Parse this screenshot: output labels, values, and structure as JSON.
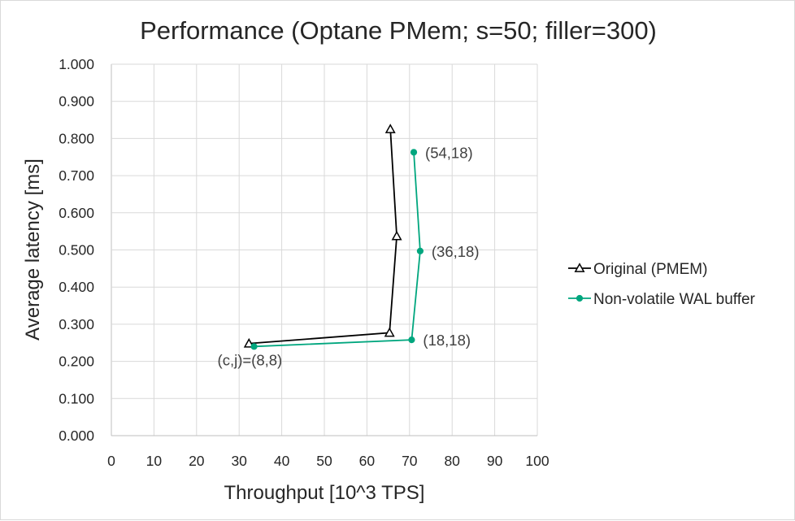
{
  "chart_data": {
    "type": "scatter",
    "title": "Performance (Optane PMem; s=50; filler=300)",
    "xlabel": "Throughput [10^3 TPS]",
    "ylabel": "Average latency [ms]",
    "xlim": [
      0,
      100
    ],
    "ylim": [
      0,
      1.0
    ],
    "x_ticks": [
      "0",
      "10",
      "20",
      "30",
      "40",
      "50",
      "60",
      "70",
      "80",
      "90",
      "100"
    ],
    "y_ticks": [
      "0.000",
      "0.100",
      "0.200",
      "0.300",
      "0.400",
      "0.500",
      "0.600",
      "0.700",
      "0.800",
      "0.900",
      "1.000"
    ],
    "grid": true,
    "legend_position": "right",
    "series": [
      {
        "name": "Original (PMEM)",
        "color": "#000000",
        "marker": "triangle-open",
        "points": [
          {
            "x": 32.3,
            "y": 0.248
          },
          {
            "x": 65.3,
            "y": 0.277
          },
          {
            "x": 67.0,
            "y": 0.537
          },
          {
            "x": 65.5,
            "y": 0.825
          }
        ]
      },
      {
        "name": "Non-volatile WAL buffer",
        "color": "#00a67e",
        "marker": "circle-filled",
        "points": [
          {
            "x": 33.5,
            "y": 0.24
          },
          {
            "x": 70.5,
            "y": 0.258
          },
          {
            "x": 72.5,
            "y": 0.497
          },
          {
            "x": 71.0,
            "y": 0.763
          }
        ]
      }
    ],
    "annotations": [
      {
        "text": "(c,j)=(8,8)",
        "x": 33.5,
        "y": 0.24,
        "anchor": "below-left"
      },
      {
        "text": "(18,18)",
        "x": 70.5,
        "y": 0.258,
        "anchor": "right"
      },
      {
        "text": "(36,18)",
        "x": 72.5,
        "y": 0.497,
        "anchor": "right"
      },
      {
        "text": "(54,18)",
        "x": 71.0,
        "y": 0.763,
        "anchor": "right"
      }
    ]
  }
}
